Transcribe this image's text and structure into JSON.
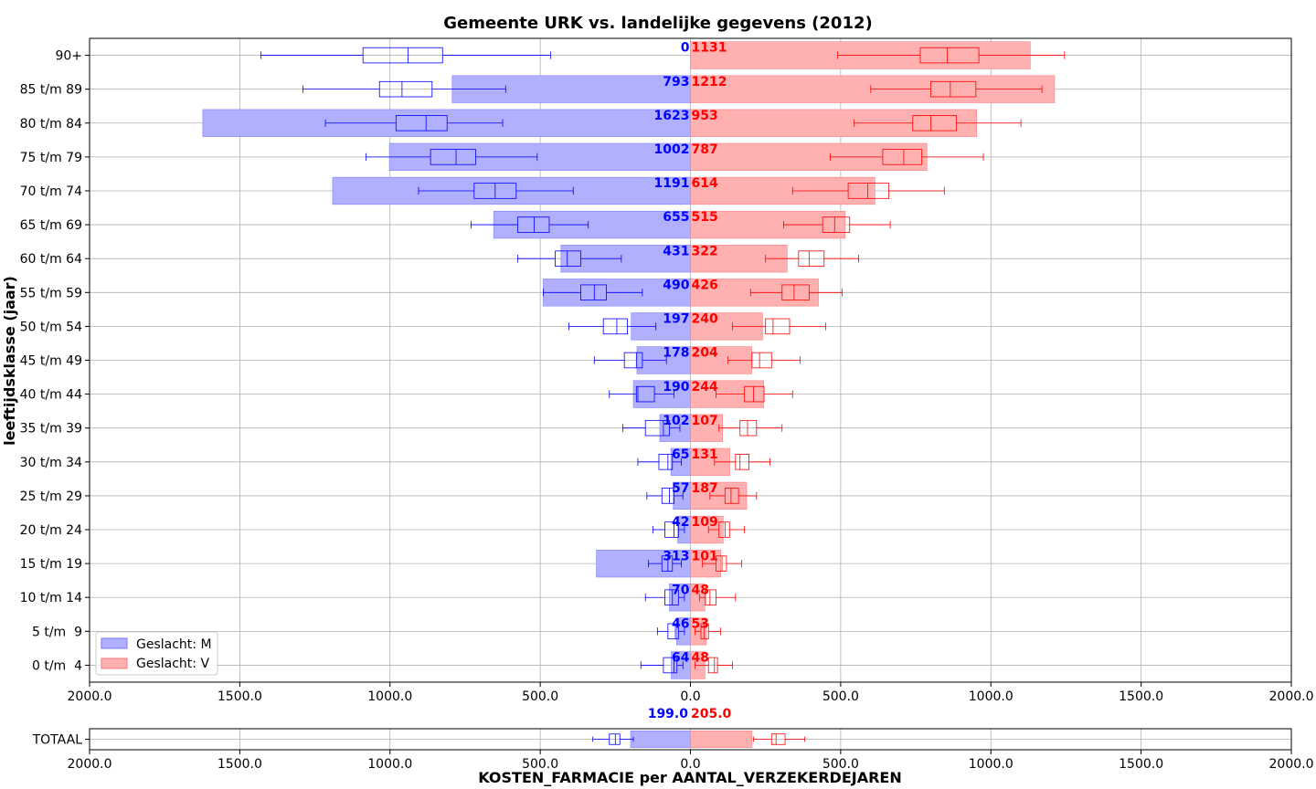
{
  "chart_data": {
    "type": "bar",
    "title": "Gemeente URK vs. landelijke gegevens (2012)",
    "xlabel": "KOSTEN_FARMACIE per AANTAL_VERZEKERDEJAREN",
    "ylabel": "leeftijdsklasse (jaar)",
    "xlim": [
      -2000,
      2000
    ],
    "xticks": [
      "2000.0",
      "1500.0",
      "1000.0",
      "500.0",
      "0.0",
      "500.0",
      "1000.0",
      "1500.0",
      "2000.0"
    ],
    "grid": true,
    "legend_position": "bottom-left",
    "colors": {
      "M": "#0000ff",
      "V": "#ff0000"
    },
    "categories": [
      "0 t/m  4",
      "5 t/m  9",
      "10 t/m 14",
      "15 t/m 19",
      "20 t/m 24",
      "25 t/m 29",
      "30 t/m 34",
      "35 t/m 39",
      "40 t/m 44",
      "45 t/m 49",
      "50 t/m 54",
      "55 t/m 59",
      "60 t/m 64",
      "65 t/m 69",
      "70 t/m 74",
      "75 t/m 79",
      "80 t/m 84",
      "85 t/m 89",
      "90+"
    ],
    "series": [
      {
        "name": "Geslacht: M",
        "values": [
          64,
          46,
          70,
          313,
          42,
          57,
          65,
          102,
          190,
          178,
          197,
          490,
          431,
          655,
          1191,
          1002,
          1623,
          793,
          0
        ],
        "labels": [
          "64",
          "46",
          "70",
          "313",
          "42",
          "57",
          "65",
          "102",
          "190",
          "178",
          "197",
          "490",
          "431",
          "655",
          "1191",
          "1002",
          "1623",
          "793",
          "0"
        ],
        "boxplots": [
          [
            25,
            45,
            55,
            90,
            165
          ],
          [
            20,
            40,
            50,
            75,
            110
          ],
          [
            20,
            40,
            60,
            85,
            150
          ],
          [
            30,
            60,
            75,
            95,
            140
          ],
          [
            20,
            40,
            55,
            85,
            125
          ],
          [
            25,
            55,
            70,
            95,
            145
          ],
          [
            30,
            60,
            75,
            105,
            175
          ],
          [
            35,
            70,
            90,
            150,
            225
          ],
          [
            55,
            120,
            175,
            180,
            270
          ],
          [
            80,
            160,
            180,
            220,
            320
          ],
          [
            115,
            210,
            245,
            290,
            405
          ],
          [
            160,
            280,
            320,
            365,
            490
          ],
          [
            230,
            365,
            410,
            450,
            575
          ],
          [
            340,
            470,
            520,
            575,
            730
          ],
          [
            390,
            580,
            650,
            720,
            905
          ],
          [
            510,
            715,
            780,
            865,
            1080
          ],
          [
            625,
            810,
            880,
            980,
            1215
          ],
          [
            615,
            860,
            960,
            1035,
            1290
          ],
          [
            465,
            825,
            940,
            1090,
            1430
          ]
        ]
      },
      {
        "name": "Geslacht: V",
        "values": [
          48,
          53,
          48,
          101,
          109,
          187,
          131,
          107,
          244,
          204,
          240,
          426,
          322,
          515,
          614,
          787,
          953,
          1212,
          1131
        ],
        "labels": [
          "48",
          "53",
          "48",
          "101",
          "109",
          "187",
          "131",
          "107",
          "244",
          "204",
          "240",
          "426",
          "322",
          "515",
          "614",
          "787",
          "953",
          "1212",
          "1131"
        ],
        "boxplots": [
          [
            15,
            60,
            80,
            90,
            140
          ],
          [
            15,
            35,
            45,
            60,
            100
          ],
          [
            30,
            50,
            65,
            85,
            150
          ],
          [
            40,
            85,
            105,
            120,
            170
          ],
          [
            60,
            95,
            115,
            130,
            180
          ],
          [
            65,
            115,
            135,
            160,
            220
          ],
          [
            80,
            150,
            165,
            195,
            265
          ],
          [
            95,
            165,
            190,
            220,
            305
          ],
          [
            85,
            180,
            210,
            245,
            340
          ],
          [
            125,
            205,
            230,
            270,
            365
          ],
          [
            140,
            250,
            275,
            330,
            450
          ],
          [
            200,
            305,
            345,
            395,
            505
          ],
          [
            250,
            360,
            395,
            445,
            560
          ],
          [
            310,
            440,
            480,
            530,
            665
          ],
          [
            340,
            525,
            590,
            660,
            845
          ],
          [
            465,
            640,
            710,
            770,
            975
          ],
          [
            545,
            740,
            800,
            885,
            1100
          ],
          [
            600,
            800,
            865,
            950,
            1170
          ],
          [
            490,
            765,
            855,
            960,
            1245
          ]
        ]
      }
    ],
    "total": {
      "label": "TOTAAL",
      "M": {
        "value": 199,
        "label": "199.0",
        "boxplot": [
          190,
          235,
          250,
          270,
          325
        ]
      },
      "V": {
        "value": 205,
        "label": "205.0",
        "boxplot": [
          210,
          270,
          285,
          315,
          380
        ]
      }
    }
  }
}
